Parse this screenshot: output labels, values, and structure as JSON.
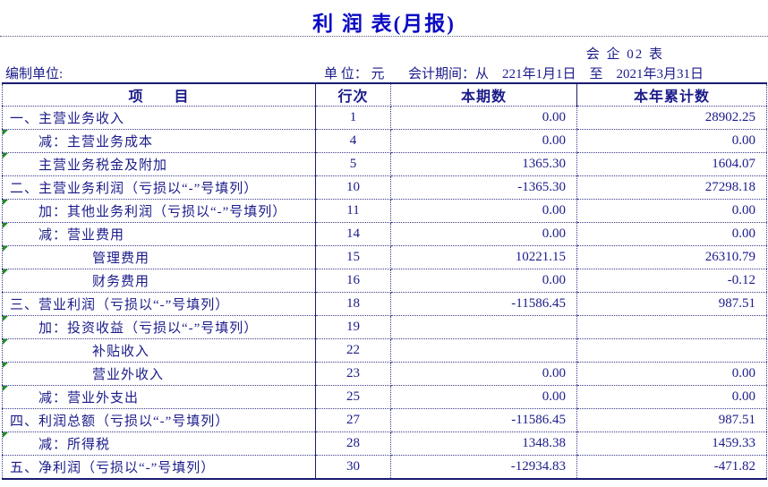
{
  "title": "利 润 表(月报)",
  "form_code": "会 企 02 表",
  "meta": {
    "prepared_by_label": "编制单位:",
    "unit_label": "单 位： 元",
    "period": "会计期间：从    221年1月1日    至    2021年3月31日"
  },
  "colors": {
    "text": "#1b1b8a",
    "title": "#0a0ac4",
    "border": "#1a1a70",
    "error_marker": "#228B22"
  },
  "table": {
    "columns": {
      "item": "项　　目",
      "line_no": "行次",
      "current_period": "本期数",
      "year_to_date": "本年累计数"
    },
    "rows": [
      {
        "item": "一、主营业务收入",
        "indent": 0,
        "line": "1",
        "current": "0.00",
        "ytd": "28902.25",
        "marker": false
      },
      {
        "item": "减：主营业务成本",
        "indent": 1,
        "line": "4",
        "current": "0.00",
        "ytd": "0.00",
        "marker": true
      },
      {
        "item": "主营业务税金及附加",
        "indent": 1,
        "line": "5",
        "current": "1365.30",
        "ytd": "1604.07",
        "marker": true
      },
      {
        "item": "二、主营业务利润（亏损以“-”号填列）",
        "indent": 0,
        "line": "10",
        "current": "-1365.30",
        "ytd": "27298.18",
        "marker": false
      },
      {
        "item": "加：其他业务利润（亏损以“-”号填列）",
        "indent": 1,
        "line": "11",
        "current": "0.00",
        "ytd": "0.00",
        "marker": true
      },
      {
        "item": "减：营业费用",
        "indent": 1,
        "line": "14",
        "current": "0.00",
        "ytd": "0.00",
        "marker": true
      },
      {
        "item": "管理费用",
        "indent": 2,
        "line": "15",
        "current": "10221.15",
        "ytd": "26310.79",
        "marker": true
      },
      {
        "item": "财务费用",
        "indent": 2,
        "line": "16",
        "current": "0.00",
        "ytd": "-0.12",
        "marker": true
      },
      {
        "item": "三、营业利润（亏损以“-”号填列）",
        "indent": 0,
        "line": "18",
        "current": "-11586.45",
        "ytd": "987.51",
        "marker": false
      },
      {
        "item": "加：投资收益（亏损以“-”号填列）",
        "indent": 1,
        "line": "19",
        "current": "",
        "ytd": "",
        "marker": true
      },
      {
        "item": "补贴收入",
        "indent": 2,
        "line": "22",
        "current": "",
        "ytd": "",
        "marker": true
      },
      {
        "item": "营业外收入",
        "indent": 2,
        "line": "23",
        "current": "0.00",
        "ytd": "0.00",
        "marker": true
      },
      {
        "item": "减：营业外支出",
        "indent": 1,
        "line": "25",
        "current": "0.00",
        "ytd": "0.00",
        "marker": true
      },
      {
        "item": "四、利润总额（亏损以“-”号填列）",
        "indent": 0,
        "line": "27",
        "current": "-11586.45",
        "ytd": "987.51",
        "marker": false
      },
      {
        "item": "减：所得税",
        "indent": 1,
        "line": "28",
        "current": "1348.38",
        "ytd": "1459.33",
        "marker": true
      },
      {
        "item": "五、净利润（亏损以“-”号填列）",
        "indent": 0,
        "line": "30",
        "current": "-12934.83",
        "ytd": "-471.82",
        "marker": false
      }
    ]
  }
}
